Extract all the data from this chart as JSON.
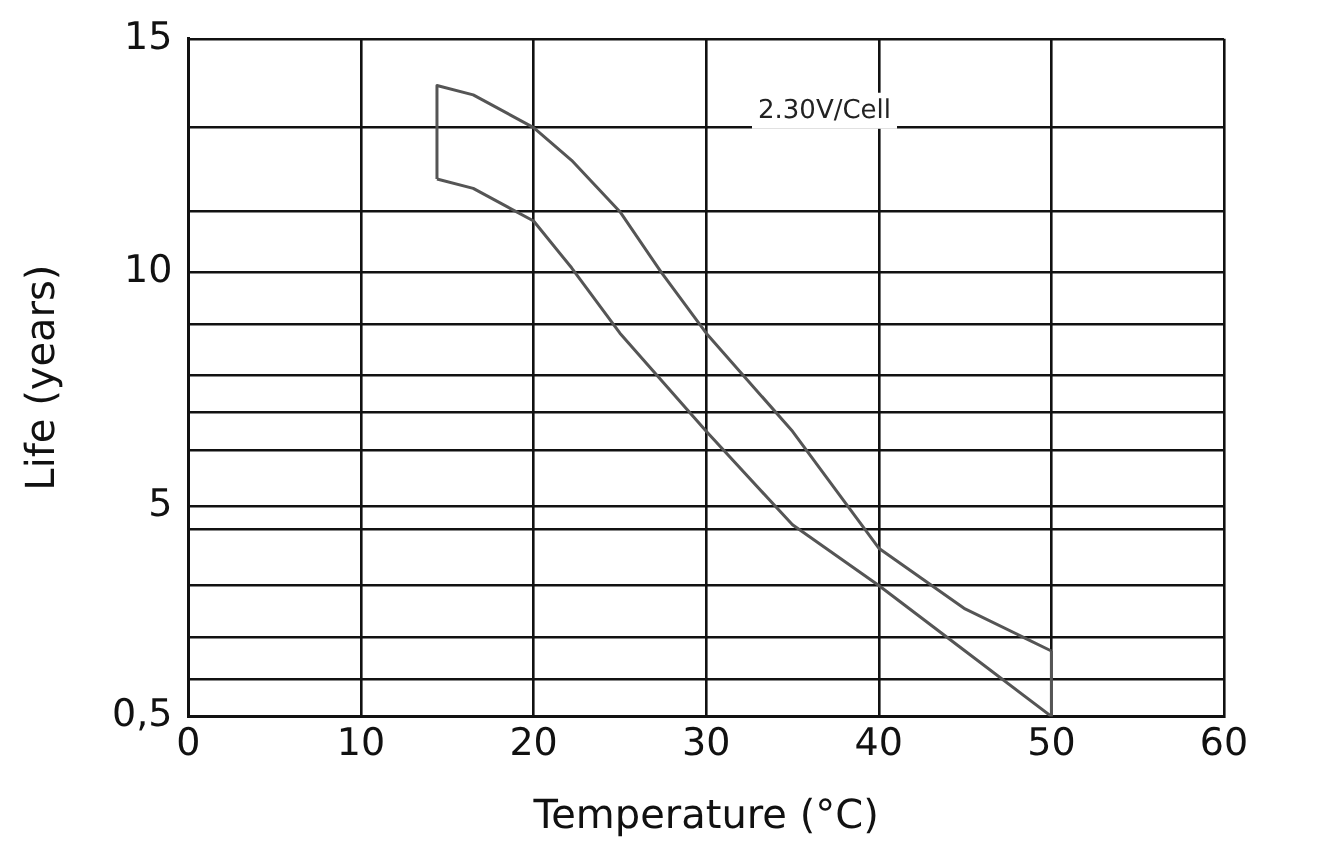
{
  "chart_data": {
    "type": "line",
    "xlabel": "Temperature (°C)",
    "ylabel": "Life (years)",
    "xlim": [
      0,
      60
    ],
    "xticks": [
      0,
      10,
      20,
      30,
      40,
      50,
      60
    ],
    "ylim": [
      0.5,
      15
    ],
    "yticks": [
      {
        "value": 0.5,
        "label": "0,5"
      },
      {
        "value": 1.3,
        "label": null
      },
      {
        "value": 2.2,
        "label": null
      },
      {
        "value": 3.3,
        "label": null
      },
      {
        "value": 4.5,
        "label": null
      },
      5,
      {
        "value": 6.2,
        "label": null
      },
      {
        "value": 7.0,
        "label": null
      },
      {
        "value": 7.8,
        "label": null
      },
      {
        "value": 8.9,
        "label": null
      },
      10,
      {
        "value": 11.3,
        "label": null
      },
      {
        "value": 13.1,
        "label": null
      },
      15
    ],
    "grid": true,
    "marker": "none",
    "line_style": "solid",
    "series": [
      {
        "color": "#555555",
        "x": [
          14.4,
          14.4,
          16.5,
          20,
          22.2,
          25,
          27.4,
          30,
          35,
          40,
          45,
          50
        ],
        "values": [
          12.0,
          14.0,
          13.8,
          13.1,
          12.4,
          11.3,
          10.0,
          8.7,
          6.6,
          4.1,
          2.8,
          1.9
        ]
      },
      {
        "color": "#555555",
        "x": [
          14.4,
          16.5,
          20,
          22.2,
          25,
          30,
          35,
          40,
          45,
          50,
          50
        ],
        "values": [
          12.0,
          11.8,
          11.1,
          10.1,
          8.7,
          6.6,
          4.6,
          3.3,
          1.9,
          0.5,
          1.9
        ]
      }
    ],
    "annotations": [
      "2.30V/Cell"
    ]
  }
}
